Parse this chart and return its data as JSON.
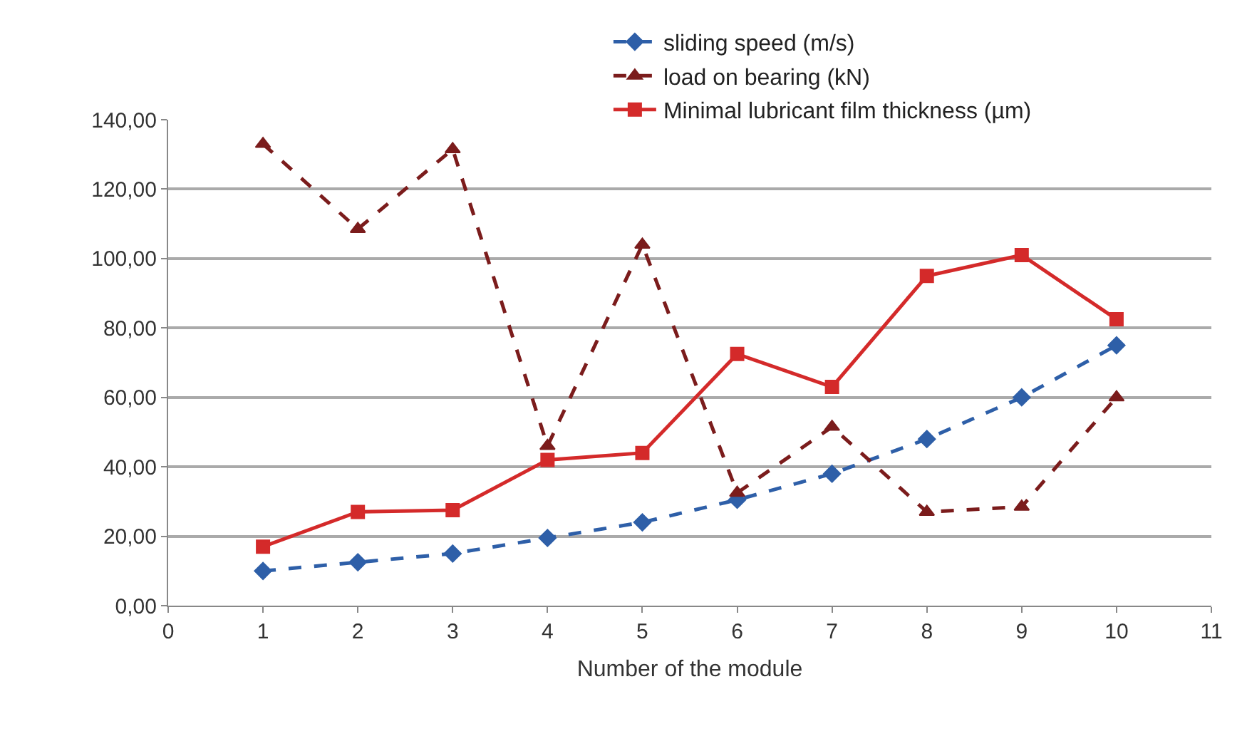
{
  "chart_data": {
    "type": "line",
    "xlabel": "Number of the module",
    "x": [
      1,
      2,
      3,
      4,
      5,
      6,
      7,
      8,
      9,
      10
    ],
    "series": [
      {
        "name": "sliding speed (m/s)",
        "color": "#2e5fa8",
        "marker": "diamond",
        "line_style": "dashed",
        "values": [
          10,
          12.5,
          15,
          19.5,
          24,
          30.5,
          38,
          48,
          60,
          75
        ]
      },
      {
        "name": "load on bearing (kN)",
        "color": "#7b1c1c",
        "marker": "triangle",
        "line_style": "dashed",
        "values": [
          133,
          108.5,
          131.5,
          46,
          104,
          32.5,
          51.5,
          27,
          28.5,
          60
        ]
      },
      {
        "name": "Minimal lubricant film thickness (µm)",
        "color": "#d42a2a",
        "marker": "square",
        "line_style": "solid",
        "values": [
          17,
          27,
          27.5,
          42,
          44,
          72.5,
          63,
          95,
          101,
          82.5
        ]
      }
    ],
    "xlim": [
      0,
      11
    ],
    "xticks": [
      0,
      1,
      2,
      3,
      4,
      5,
      6,
      7,
      8,
      9,
      10,
      11
    ],
    "ylim": [
      0,
      140
    ],
    "yticks": [
      {
        "value": 0,
        "label": "0,00"
      },
      {
        "value": 20,
        "label": "20,00"
      },
      {
        "value": 40,
        "label": "40,00"
      },
      {
        "value": 60,
        "label": "60,00"
      },
      {
        "value": 80,
        "label": "80,00"
      },
      {
        "value": 100,
        "label": "100,00"
      },
      {
        "value": 120,
        "label": "120,00"
      },
      {
        "value": 140,
        "label": "140,00"
      }
    ],
    "grid": "y",
    "legend": "top"
  }
}
